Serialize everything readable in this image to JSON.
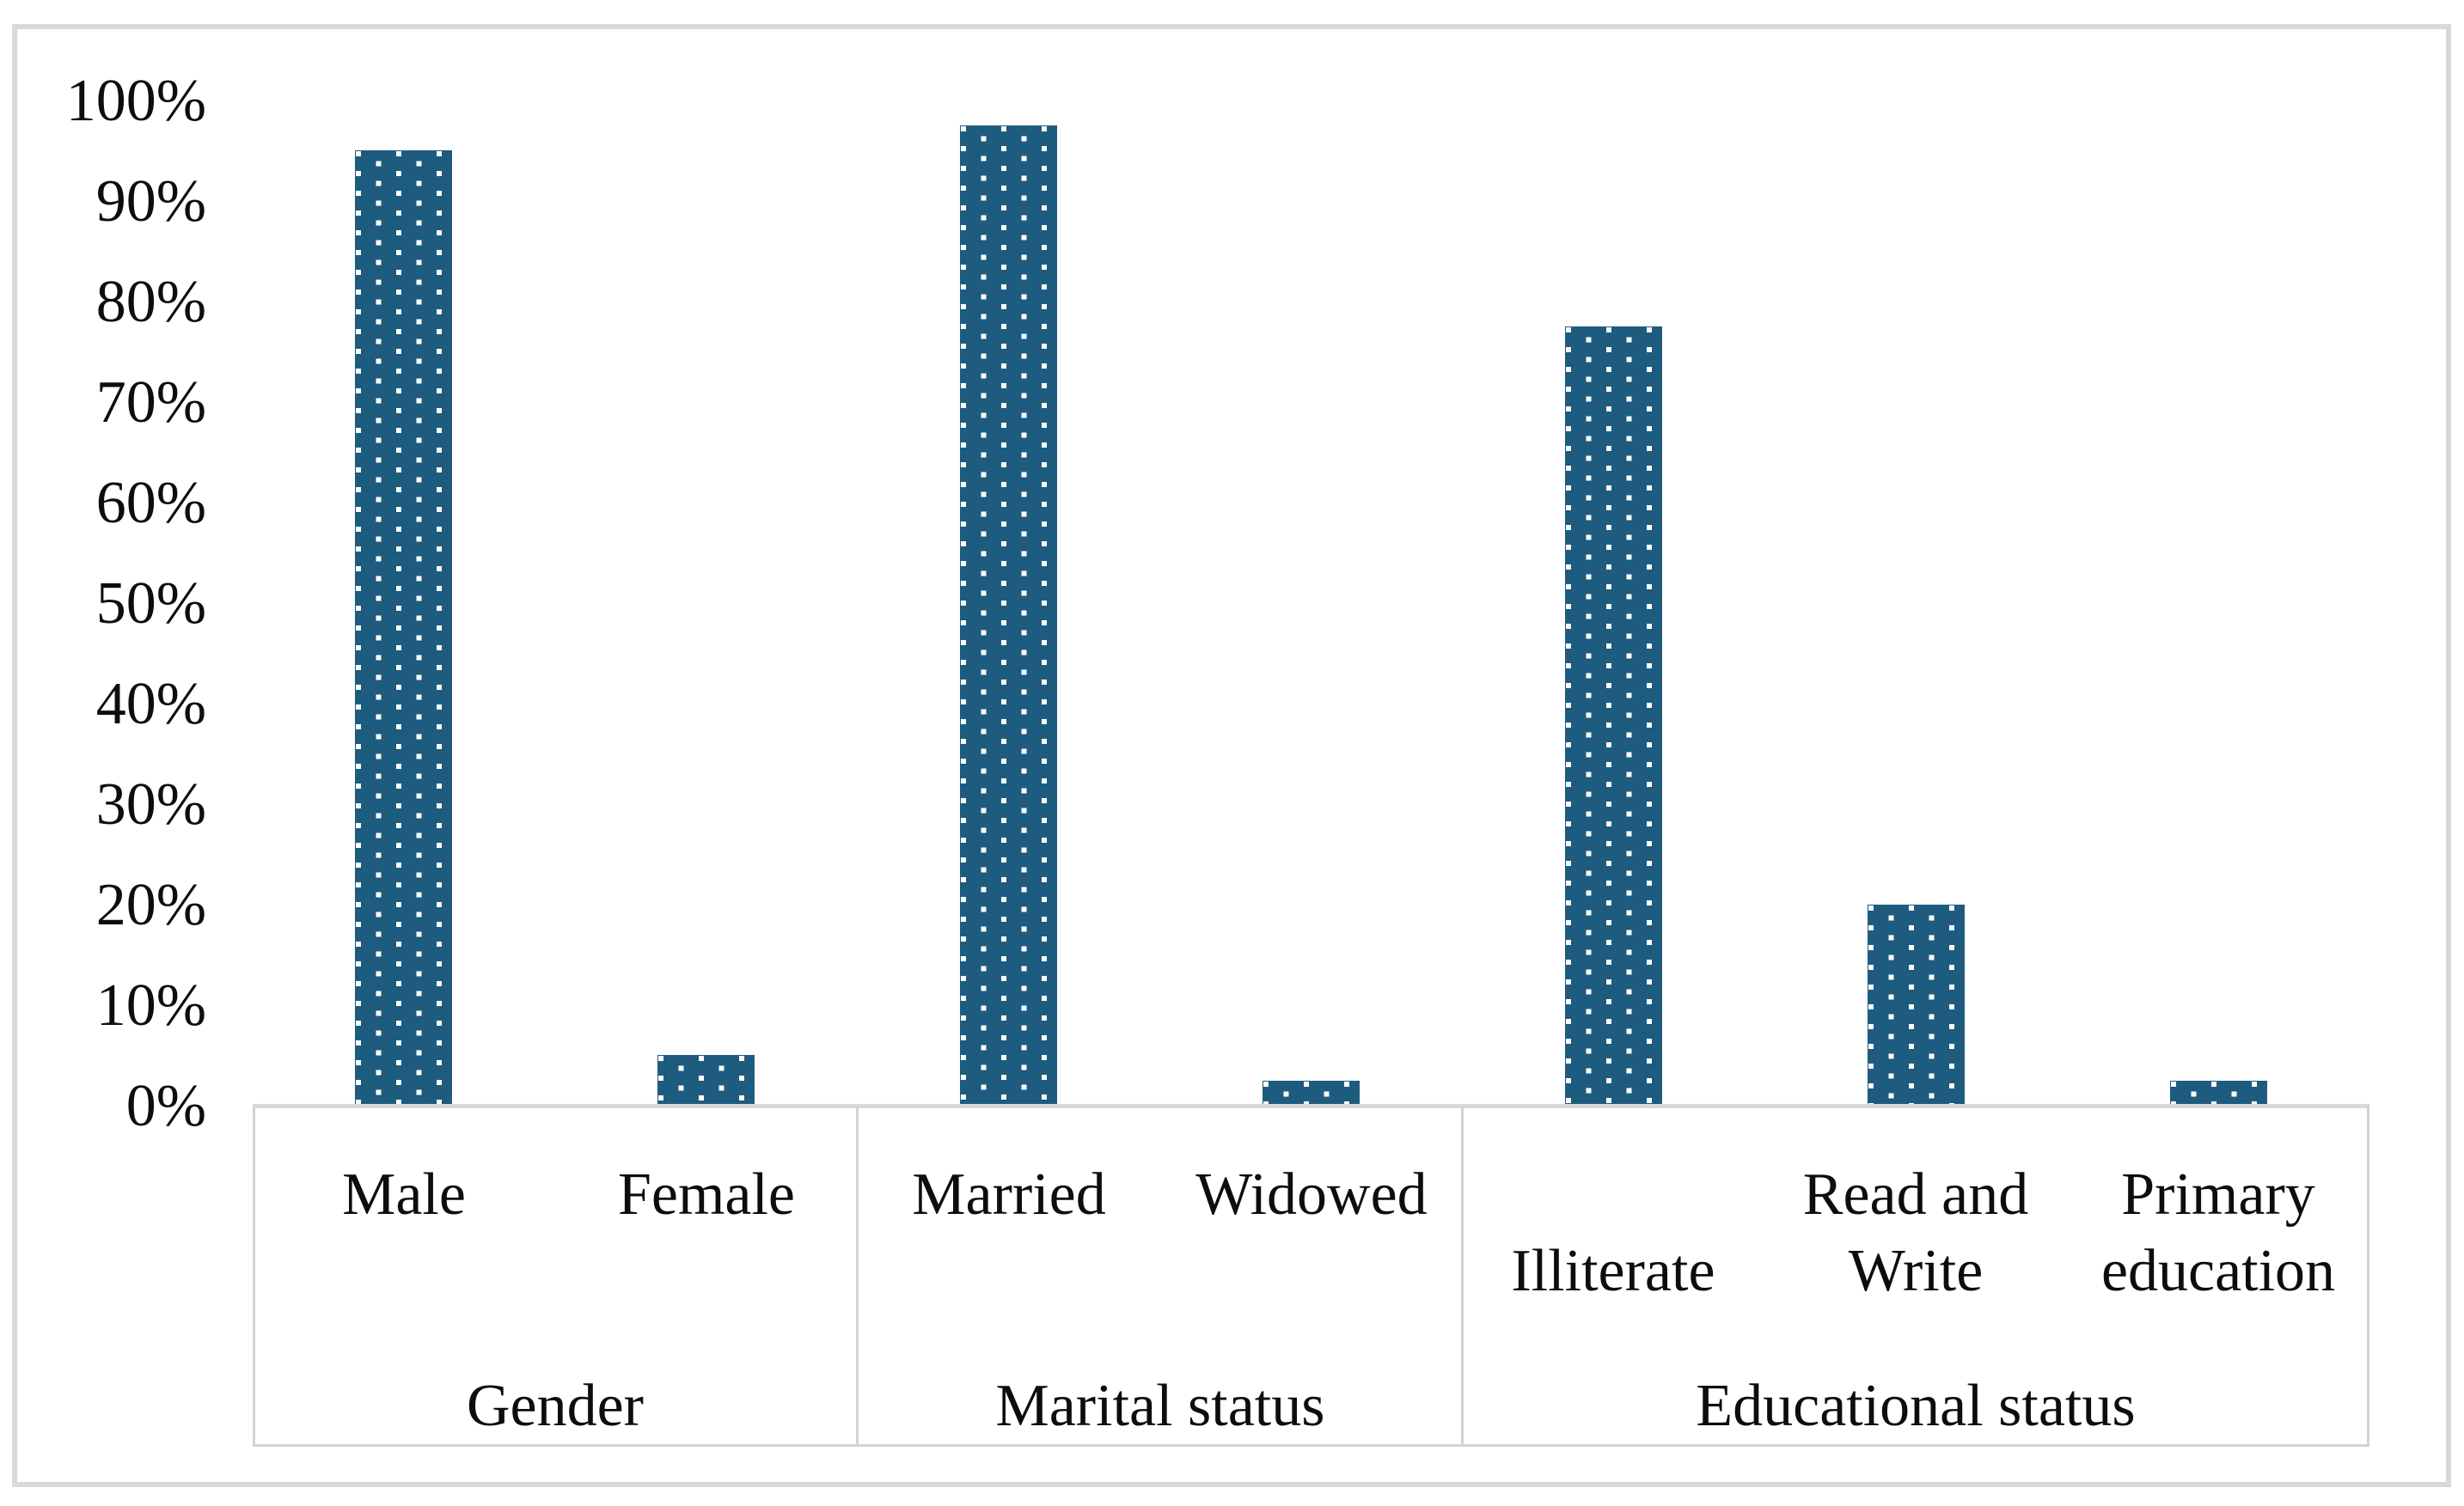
{
  "figure": {
    "background_color": "#ffffff",
    "border_color": "#d9d9d9",
    "line_color": "#d3d3d3",
    "text_color": "#0d0d0d"
  },
  "chart_data": {
    "type": "bar",
    "title": "",
    "xlabel": "",
    "ylabel": "",
    "ylim": [
      0,
      100
    ],
    "grid": false,
    "legend": false,
    "bar_color": "#1d5c7e",
    "bar_pattern": "staggered-white-square-dots",
    "dot_color": "#ffffff",
    "y_tick_labels": [
      "0%",
      "10%",
      "20%",
      "30%",
      "40%",
      "50%",
      "60%",
      "70%",
      "80%",
      "90%",
      "100%"
    ],
    "y_tick_values": [
      0,
      10,
      20,
      30,
      40,
      50,
      60,
      70,
      80,
      90,
      100
    ],
    "categories": [
      "Male",
      "Female",
      "Married",
      "Widowed",
      "Illiterate",
      "Read and Write",
      "Primary education"
    ],
    "values": [
      95,
      5,
      97.5,
      2.5,
      77.5,
      20,
      2.5
    ],
    "groups": [
      {
        "label": "Gender",
        "categories": [
          {
            "label": "Male",
            "lines": [
              "Male"
            ],
            "line_row": 1,
            "value_pct": 95
          },
          {
            "label": "Female",
            "lines": [
              "Female"
            ],
            "line_row": 1,
            "value_pct": 5
          }
        ]
      },
      {
        "label": "Marital status",
        "categories": [
          {
            "label": "Married",
            "lines": [
              "Married"
            ],
            "line_row": 1,
            "value_pct": 97.5
          },
          {
            "label": "Widowed",
            "lines": [
              "Widowed"
            ],
            "line_row": 1,
            "value_pct": 2.5
          }
        ]
      },
      {
        "label": "Educational status",
        "categories": [
          {
            "label": "Illiterate",
            "lines": [
              "Illiterate"
            ],
            "line_row": 2,
            "value_pct": 77.5
          },
          {
            "label": "Read and Write",
            "lines": [
              "Read and",
              "Write"
            ],
            "line_row": 1,
            "value_pct": 20
          },
          {
            "label": "Primary education",
            "lines": [
              "Primary",
              "education"
            ],
            "line_row": 1,
            "value_pct": 2.5
          }
        ]
      }
    ]
  }
}
